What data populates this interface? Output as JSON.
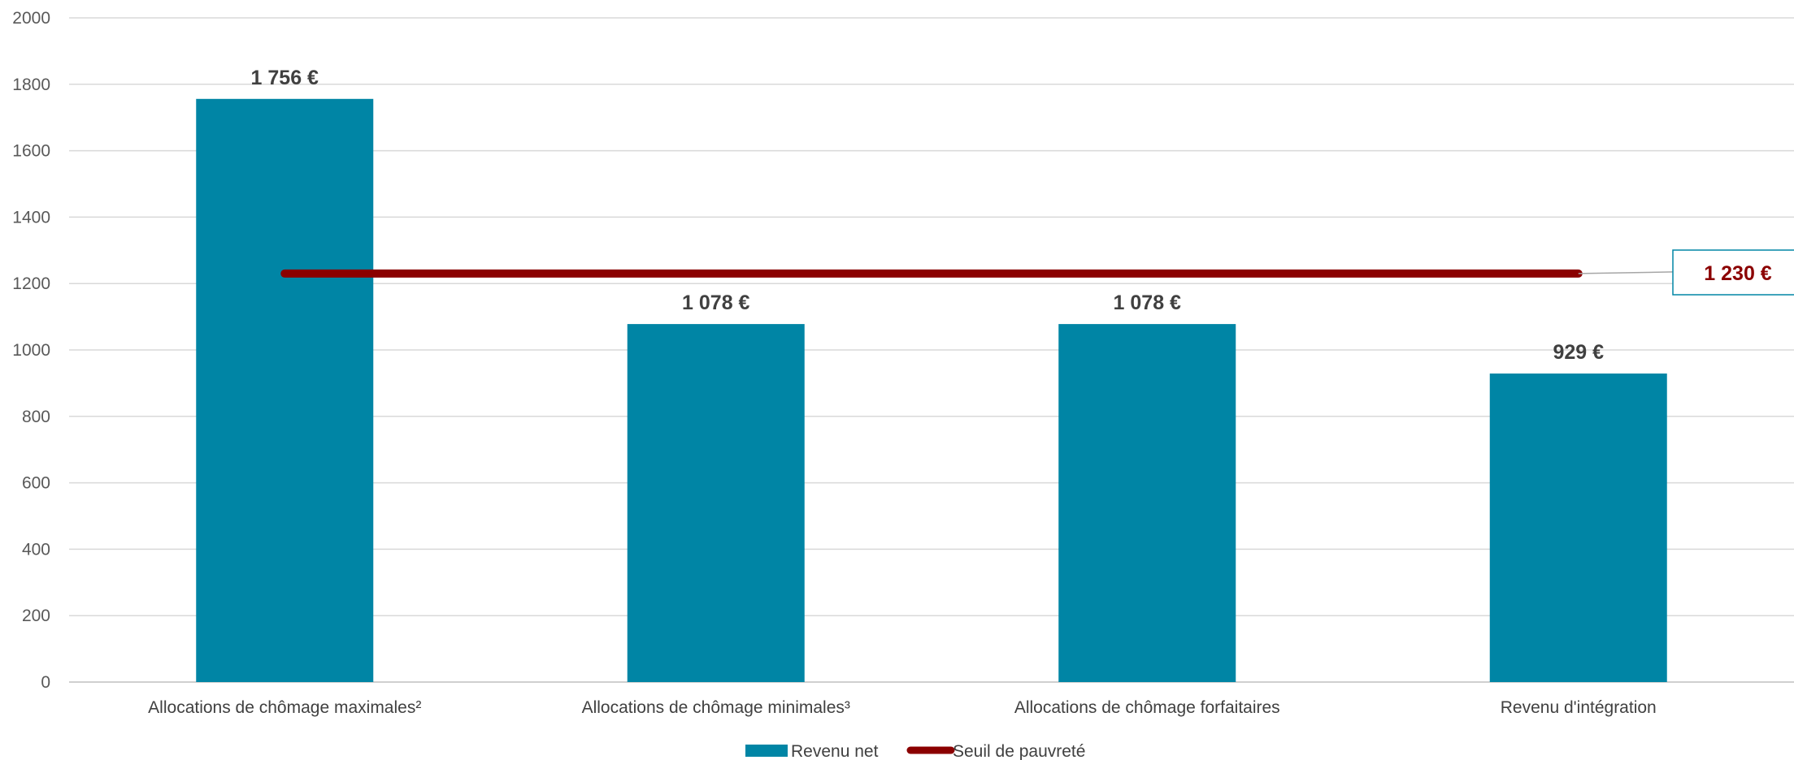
{
  "chart_data": {
    "type": "bar",
    "categories": [
      "Allocations de chômage maximales²",
      "Allocations de chômage minimales³",
      "Allocations de chômage forfaitaires",
      "Revenu d'intégration"
    ],
    "series": [
      {
        "name": "Revenu net",
        "type": "bar",
        "values": [
          1756,
          1078,
          1078,
          929
        ],
        "data_labels": [
          "1 756 €",
          "1 078 €",
          "1 078 €",
          "929 €"
        ],
        "color": "#0085A5"
      },
      {
        "name": "Seuil de pauvreté",
        "type": "line",
        "values": [
          1230,
          1230,
          1230,
          1230
        ],
        "data_label": "1 230 €",
        "color": "#8B0000"
      }
    ],
    "ylim": [
      0,
      2000
    ],
    "yticks": [
      0,
      200,
      400,
      600,
      800,
      1000,
      1200,
      1400,
      1600,
      1800,
      2000
    ],
    "grid": true,
    "legend_position": "bottom"
  }
}
